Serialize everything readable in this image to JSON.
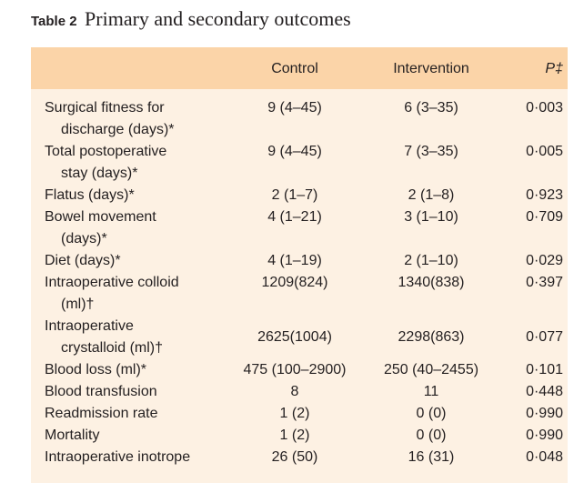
{
  "title": {
    "number": "Table 2",
    "caption": "Primary and secondary outcomes"
  },
  "columns": {
    "control": "Control",
    "intervention": "Intervention",
    "p": "P‡"
  },
  "rows": [
    {
      "label": [
        "Surgical fitness for",
        "discharge (days)*"
      ],
      "control": "9 (4–45)",
      "intervention": "6 (3–35)",
      "p": "0·003"
    },
    {
      "label": [
        "Total postoperative",
        "stay (days)*"
      ],
      "control": "9 (4–45)",
      "intervention": "7 (3–35)",
      "p": "0·005"
    },
    {
      "label": [
        "Flatus (days)*"
      ],
      "control": "2 (1–7)",
      "intervention": "2 (1–8)",
      "p": "0·923"
    },
    {
      "label": [
        "Bowel movement",
        "(days)*"
      ],
      "control": "4 (1–21)",
      "intervention": "3 (1–10)",
      "p": "0·709"
    },
    {
      "label": [
        "Diet (days)*"
      ],
      "control": "4 (1–19)",
      "intervention": "2 (1–10)",
      "p": "0·029"
    },
    {
      "label": [
        "Intraoperative colloid",
        "(ml)†"
      ],
      "control": "1209(824)",
      "intervention": "1340(838)",
      "p": "0·397"
    },
    {
      "label": [
        "Intraoperative",
        "crystalloid (ml)†"
      ],
      "control": "2625(1004)",
      "intervention": "2298(863)",
      "p": "0·077"
    },
    {
      "label": [
        "Blood loss (ml)*"
      ],
      "control": "475 (100–2900)",
      "intervention": "250 (40–2455)",
      "p": "0·101"
    },
    {
      "label": [
        "Blood transfusion"
      ],
      "control": "8",
      "intervention": "11",
      "p": "0·448"
    },
    {
      "label": [
        "Readmission rate"
      ],
      "control": "1 (2)",
      "intervention": "0 (0)",
      "p": "0·990"
    },
    {
      "label": [
        "Mortality"
      ],
      "control": "1 (2)",
      "intervention": "0 (0)",
      "p": "0·990"
    },
    {
      "label": [
        "Intraoperative inotrope"
      ],
      "control": "26 (50)",
      "intervention": "16 (31)",
      "p": "0·048"
    }
  ]
}
